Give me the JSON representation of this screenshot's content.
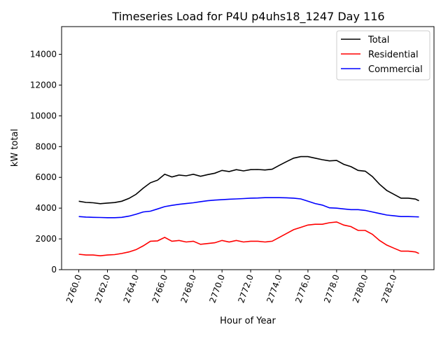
{
  "chart_data": {
    "type": "line",
    "title": "Timeseries Load for P4U p4uhs18_1247  Day 116",
    "xlabel": "Hour of Year",
    "ylabel": "kW total",
    "xlim": [
      2758.8,
      2784.8
    ],
    "ylim": [
      0,
      15800
    ],
    "xticks": [
      2760,
      2762,
      2764,
      2766,
      2768,
      2770,
      2772,
      2774,
      2776,
      2778,
      2780,
      2782
    ],
    "xtick_labels": [
      "2760.0",
      "2762.0",
      "2764.0",
      "2766.0",
      "2768.0",
      "2770.0",
      "2772.0",
      "2774.0",
      "2776.0",
      "2778.0",
      "2780.0",
      "2782.0"
    ],
    "yticks": [
      0,
      2000,
      4000,
      6000,
      8000,
      10000,
      12000,
      14000
    ],
    "ytick_labels": [
      "0",
      "2000",
      "4000",
      "6000",
      "8000",
      "10000",
      "12000",
      "14000"
    ],
    "grid": false,
    "legend_position": "top-right",
    "x": [
      2760,
      2760.5,
      2761,
      2761.5,
      2762,
      2762.5,
      2763,
      2763.5,
      2764,
      2764.5,
      2765,
      2765.5,
      2766,
      2766.5,
      2767,
      2767.5,
      2768,
      2768.5,
      2769,
      2769.5,
      2770,
      2770.5,
      2771,
      2771.5,
      2772,
      2772.5,
      2773,
      2773.5,
      2774,
      2774.5,
      2775,
      2775.5,
      2776,
      2776.5,
      2777,
      2777.5,
      2778,
      2778.5,
      2779,
      2779.5,
      2780,
      2780.5,
      2781,
      2781.5,
      2782,
      2782.5,
      2783,
      2783.5,
      2783.75
    ],
    "series": [
      {
        "name": "Total",
        "color": "#000000",
        "values": [
          4450,
          4370,
          4350,
          4290,
          4330,
          4360,
          4450,
          4630,
          4900,
          5300,
          5650,
          5820,
          6200,
          6030,
          6150,
          6100,
          6200,
          6070,
          6180,
          6270,
          6450,
          6380,
          6500,
          6420,
          6500,
          6510,
          6480,
          6530,
          6780,
          7020,
          7250,
          7350,
          7350,
          7250,
          7150,
          7070,
          7100,
          6850,
          6700,
          6450,
          6400,
          6050,
          5550,
          5150,
          4900,
          4650,
          4650,
          4590,
          4480
        ]
      },
      {
        "name": "Residential",
        "color": "#ff0000",
        "values": [
          1000,
          950,
          950,
          900,
          950,
          980,
          1050,
          1150,
          1300,
          1550,
          1850,
          1870,
          2100,
          1850,
          1900,
          1800,
          1850,
          1650,
          1700,
          1750,
          1900,
          1800,
          1900,
          1800,
          1850,
          1850,
          1800,
          1850,
          2100,
          2350,
          2600,
          2750,
          2900,
          2950,
          2950,
          3050,
          3100,
          2900,
          2800,
          2550,
          2550,
          2300,
          1900,
          1600,
          1400,
          1200,
          1200,
          1150,
          1050
        ]
      },
      {
        "name": "Commercial",
        "color": "#0000ff",
        "values": [
          3450,
          3420,
          3400,
          3390,
          3380,
          3380,
          3400,
          3480,
          3600,
          3750,
          3800,
          3950,
          4100,
          4180,
          4250,
          4300,
          4350,
          4420,
          4480,
          4520,
          4550,
          4580,
          4600,
          4620,
          4650,
          4660,
          4680,
          4680,
          4680,
          4670,
          4650,
          4600,
          4450,
          4300,
          4200,
          4020,
          4000,
          3950,
          3900,
          3900,
          3850,
          3750,
          3650,
          3550,
          3500,
          3450,
          3450,
          3440,
          3430
        ]
      }
    ]
  }
}
